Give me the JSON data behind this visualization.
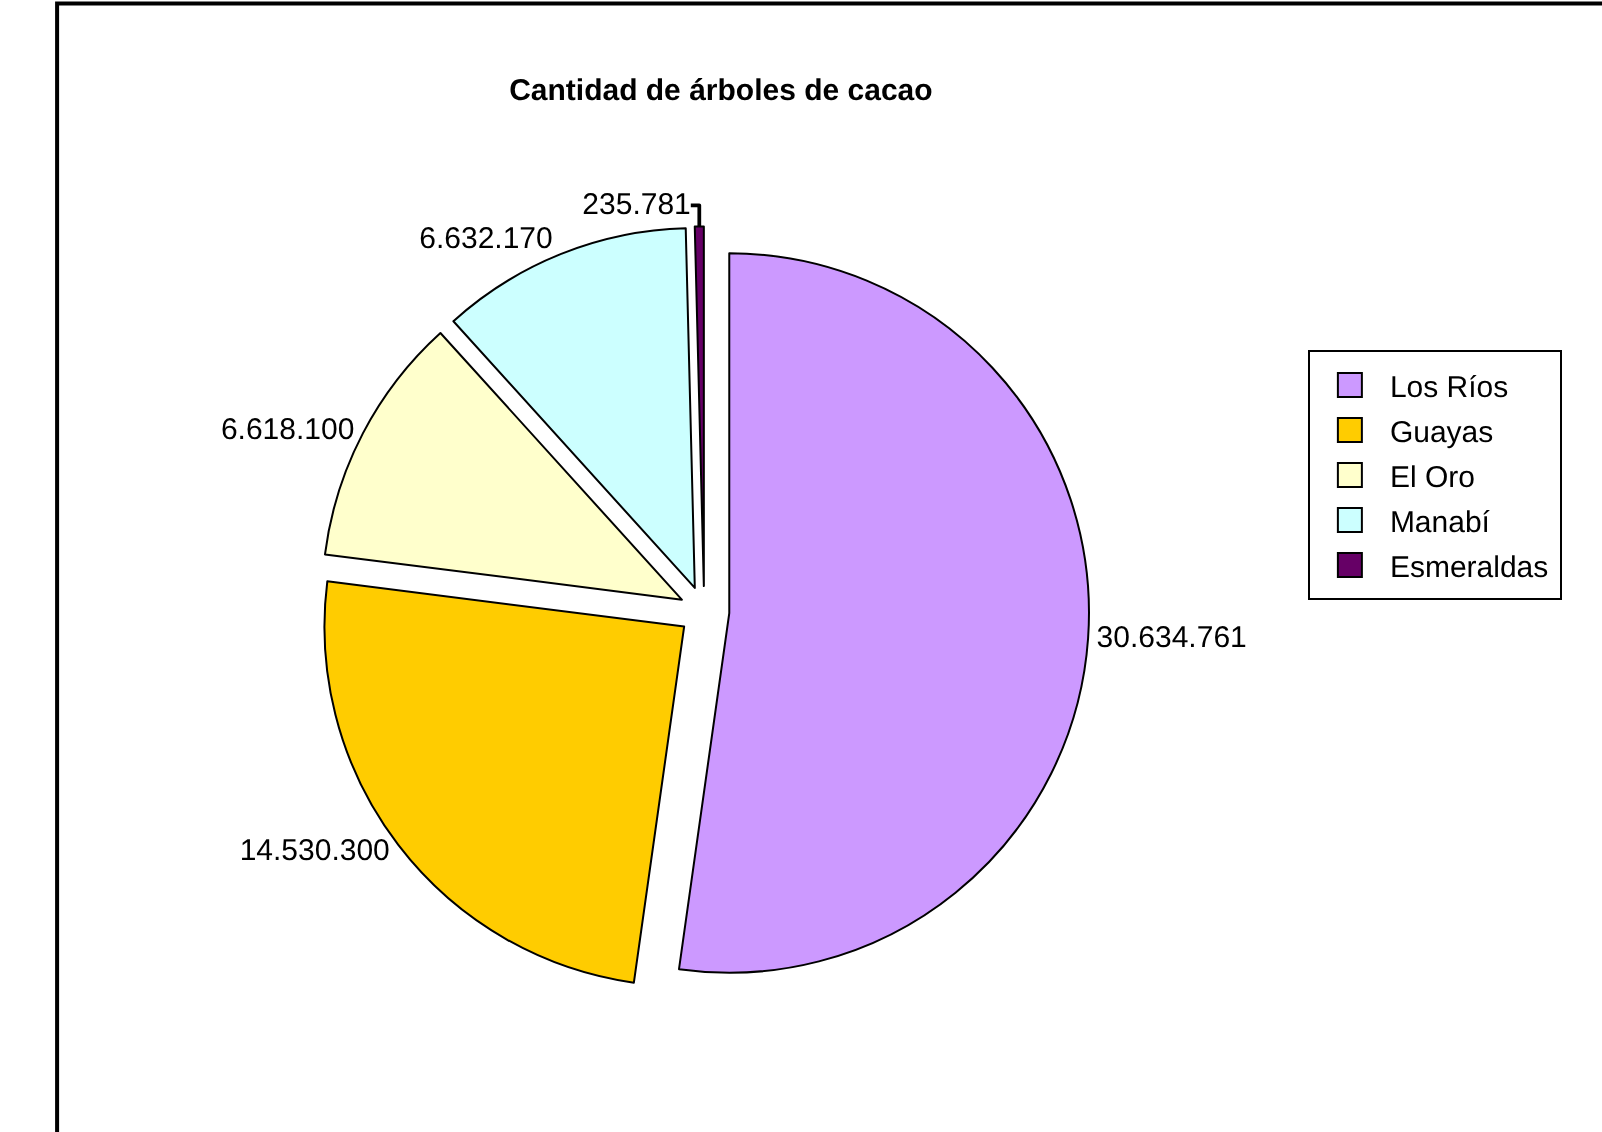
{
  "chart_data": {
    "type": "pie",
    "title": "Cantidad de árboles de cacao",
    "categories": [
      "Los Ríos",
      "Guayas",
      "El Oro",
      "Manabí",
      "Esmeraldas"
    ],
    "values": [
      30634761,
      14530300,
      6618100,
      6632170,
      235781
    ],
    "value_labels": [
      "30.634.761",
      "14.530.300",
      "6.618.100",
      "6.632.170",
      "235.781"
    ],
    "colors": [
      "#cc99ff",
      "#ffcc00",
      "#ffffcc",
      "#ccffff",
      "#660066"
    ],
    "legend": "right"
  }
}
